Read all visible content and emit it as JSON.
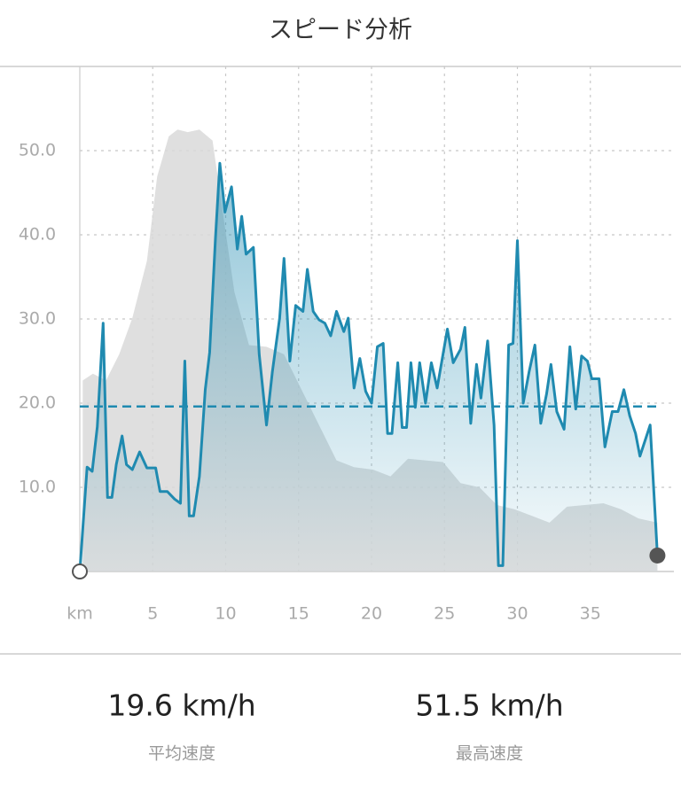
{
  "title": "スピード分析",
  "chart_data": {
    "type": "line",
    "xlim": [
      0,
      40
    ],
    "ylim": [
      0,
      60
    ],
    "xticks": [
      {
        "value": 0,
        "label": "km"
      },
      5,
      10,
      15,
      20,
      25,
      30,
      35
    ],
    "yticks": [
      {
        "value": 10,
        "label": "10.0"
      },
      {
        "value": 20,
        "label": "20.0"
      },
      {
        "value": 30,
        "label": "30.0"
      },
      {
        "value": 40,
        "label": "40.0"
      },
      {
        "value": 50,
        "label": "50.0"
      }
    ],
    "grid": true,
    "average_line": 19.6,
    "series": [
      {
        "color": "#d9d9d9",
        "x": [
          0.2,
          0.9,
          1.8,
          2.7,
          3.6,
          4.6,
          5.3,
          6.1,
          6.7,
          7.4,
          8.2,
          9.1,
          9.8,
          10.6,
          11.6,
          12.8,
          14.0,
          15.2,
          16.4,
          17.6,
          18.8,
          20.1,
          21.3,
          22.5,
          23.7,
          24.9,
          26.1,
          27.4,
          28.6,
          29.8,
          31.0,
          32.2,
          33.4,
          34.6,
          35.9,
          37.1,
          38.3,
          39.6
        ],
        "values": [
          22.7,
          23.5,
          22.7,
          25.8,
          30.1,
          36.9,
          46.9,
          51.7,
          52.5,
          52.2,
          52.5,
          51.2,
          42.7,
          33.2,
          26.9,
          26.7,
          25.8,
          21.6,
          17.4,
          13.2,
          12.4,
          12.1,
          11.3,
          13.4,
          13.2,
          13.0,
          10.5,
          10.0,
          7.9,
          7.4,
          6.6,
          5.8,
          7.7,
          7.9,
          8.1,
          7.4,
          6.3,
          5.8
        ]
      },
      {
        "color": "#1f8ab0",
        "x": [
          0,
          0.5,
          0.85,
          1.2,
          1.6,
          1.9,
          2.2,
          2.5,
          2.9,
          3.2,
          3.6,
          4.1,
          4.6,
          5.2,
          5.5,
          6.0,
          6.5,
          6.9,
          7.2,
          7.5,
          7.8,
          8.2,
          8.6,
          8.9,
          9.3,
          9.6,
          9.95,
          10.4,
          10.8,
          11.1,
          11.4,
          11.9,
          12.3,
          12.8,
          13.2,
          13.7,
          14.0,
          14.4,
          14.8,
          15.3,
          15.6,
          16.0,
          16.4,
          16.8,
          17.2,
          17.6,
          18.1,
          18.4,
          18.8,
          19.2,
          19.6,
          20.0,
          20.4,
          20.8,
          21.1,
          21.4,
          21.8,
          22.1,
          22.4,
          22.7,
          23.0,
          23.3,
          23.7,
          24.1,
          24.5,
          24.9,
          25.2,
          25.6,
          26.1,
          26.4,
          26.8,
          27.2,
          27.5,
          27.96,
          28.4,
          28.7,
          29.0,
          29.4,
          29.7,
          30.0,
          30.4,
          30.8,
          31.2,
          31.6,
          32.0,
          32.3,
          32.7,
          33.2,
          33.6,
          34.0,
          34.4,
          34.8,
          35.1,
          35.6,
          36.0,
          36.5,
          36.9,
          37.3,
          37.7,
          38.1,
          38.4,
          38.8,
          39.1,
          39.6
        ],
        "values": [
          0,
          12.4,
          11.9,
          17.2,
          29.5,
          8.8,
          8.8,
          12.7,
          16.1,
          12.7,
          12.1,
          14.2,
          12.3,
          12.3,
          9.5,
          9.5,
          8.6,
          8.1,
          25,
          6.6,
          6.6,
          11.3,
          21.6,
          26,
          39.6,
          48.5,
          42.7,
          45.7,
          38.3,
          42.2,
          37.7,
          38.5,
          25.8,
          17.4,
          23.7,
          30.1,
          37.2,
          25,
          31.6,
          30.9,
          35.9,
          30.9,
          29.9,
          29.5,
          28,
          30.9,
          28.5,
          30.1,
          21.8,
          25.3,
          21.4,
          20,
          26.7,
          27.1,
          16.4,
          16.4,
          24.8,
          17.1,
          17.1,
          24.8,
          19.5,
          24.8,
          20,
          24.8,
          21.8,
          25.8,
          28.8,
          24.8,
          26.4,
          29,
          17.6,
          24.6,
          20.6,
          27.4,
          17.4,
          0.7,
          0.7,
          26.9,
          27.1,
          39.3,
          20,
          23.7,
          26.9,
          17.6,
          21.1,
          24.6,
          19,
          16.9,
          26.7,
          19.3,
          25.6,
          25,
          22.9,
          22.9,
          14.8,
          19,
          19,
          21.6,
          18.5,
          16.4,
          13.7,
          15.8,
          17.4,
          1.9
        ]
      }
    ]
  },
  "stats": [
    {
      "value": "19.6 km/h",
      "label": "平均速度"
    },
    {
      "value": "51.5 km/h",
      "label": "最高速度"
    }
  ]
}
